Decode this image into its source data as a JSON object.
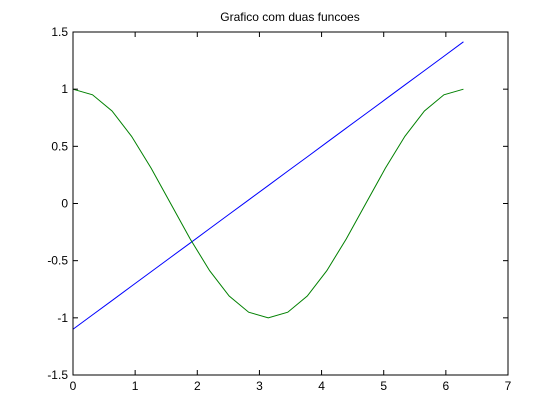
{
  "chart_data": {
    "type": "line",
    "title": "Grafico com duas funcoes",
    "xlabel": "",
    "ylabel": "",
    "xlim": [
      0,
      7
    ],
    "ylim": [
      -1.5,
      1.5
    ],
    "xticks": [
      0,
      1,
      2,
      3,
      4,
      5,
      6,
      7
    ],
    "yticks": [
      -1.5,
      -1,
      -0.5,
      0,
      0.5,
      1,
      1.5
    ],
    "xtick_labels": [
      "0",
      "1",
      "2",
      "3",
      "4",
      "5",
      "6",
      "7"
    ],
    "ytick_labels": [
      "-1.5",
      "-1",
      "-0.5",
      "0",
      "0.5",
      "1",
      "1.5"
    ],
    "grid": false,
    "series": [
      {
        "color": "#0000ff",
        "x": [
          0,
          0.314,
          0.628,
          0.942,
          1.257,
          1.571,
          1.885,
          2.199,
          2.513,
          2.827,
          3.142,
          3.456,
          3.77,
          4.084,
          4.398,
          4.712,
          5.027,
          5.341,
          5.655,
          5.969,
          6.283
        ],
        "y": [
          -1.1,
          -0.974,
          -0.849,
          -0.723,
          -0.597,
          -0.471,
          -0.346,
          -0.22,
          -0.094,
          0.031,
          0.157,
          0.283,
          0.408,
          0.534,
          0.66,
          0.785,
          0.911,
          1.037,
          1.162,
          1.288,
          1.414
        ]
      },
      {
        "color": "#008000",
        "x": [
          0,
          0.314,
          0.628,
          0.942,
          1.257,
          1.571,
          1.885,
          2.199,
          2.513,
          2.827,
          3.142,
          3.456,
          3.77,
          4.084,
          4.398,
          4.712,
          5.027,
          5.341,
          5.655,
          5.969,
          6.283
        ],
        "y": [
          1.0,
          0.951,
          0.809,
          0.588,
          0.309,
          0.0,
          -0.309,
          -0.588,
          -0.809,
          -0.951,
          -1.0,
          -0.951,
          -0.809,
          -0.588,
          -0.309,
          0.0,
          0.309,
          0.588,
          0.809,
          0.951,
          1.0
        ]
      }
    ]
  }
}
